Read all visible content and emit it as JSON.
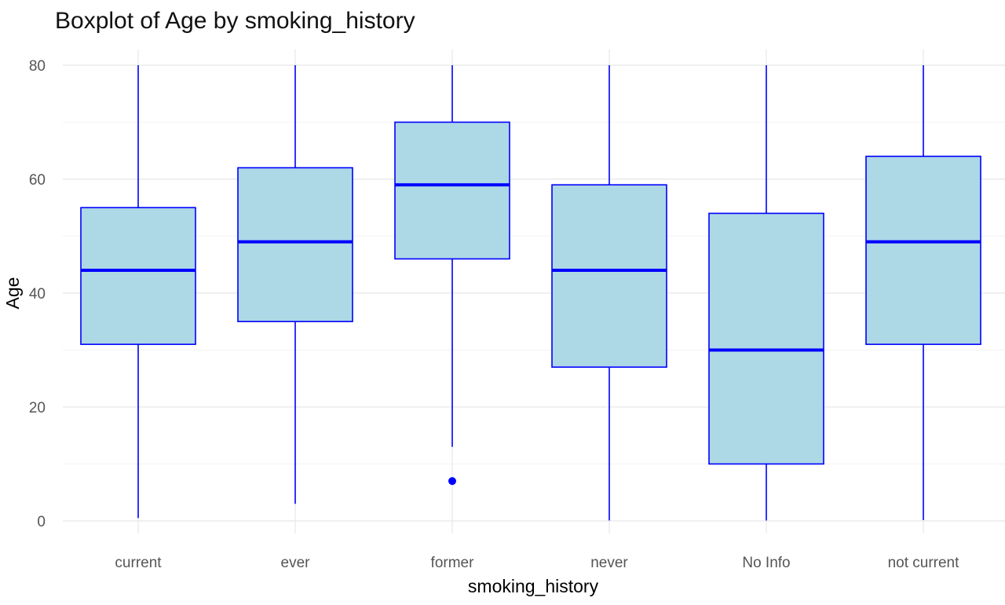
{
  "chart_data": {
    "type": "boxplot",
    "title": "Boxplot of Age by smoking_history",
    "xlabel": "smoking_history",
    "ylabel": "Age",
    "ylim": [
      0,
      80
    ],
    "yticks": [
      0,
      20,
      40,
      60,
      80
    ],
    "grid": true,
    "fill_color": "#add8e6",
    "stroke_color": "#0000ff",
    "categories": [
      "current",
      "ever",
      "former",
      "never",
      "No Info",
      "not current"
    ],
    "boxes": [
      {
        "category": "current",
        "whisker_low": 0.5,
        "q1": 31,
        "median": 44,
        "q3": 55,
        "whisker_high": 80,
        "outliers": []
      },
      {
        "category": "ever",
        "whisker_low": 3,
        "q1": 35,
        "median": 49,
        "q3": 62,
        "whisker_high": 80,
        "outliers": []
      },
      {
        "category": "former",
        "whisker_low": 13,
        "q1": 46,
        "median": 59,
        "q3": 70,
        "whisker_high": 80,
        "outliers": [
          7
        ]
      },
      {
        "category": "never",
        "whisker_low": 0.08,
        "q1": 27,
        "median": 44,
        "q3": 59,
        "whisker_high": 80,
        "outliers": []
      },
      {
        "category": "No Info",
        "whisker_low": 0.08,
        "q1": 10,
        "median": 30,
        "q3": 54,
        "whisker_high": 80,
        "outliers": []
      },
      {
        "category": "not current",
        "whisker_low": 0.16,
        "q1": 31,
        "median": 49,
        "q3": 64,
        "whisker_high": 80,
        "outliers": []
      }
    ]
  }
}
